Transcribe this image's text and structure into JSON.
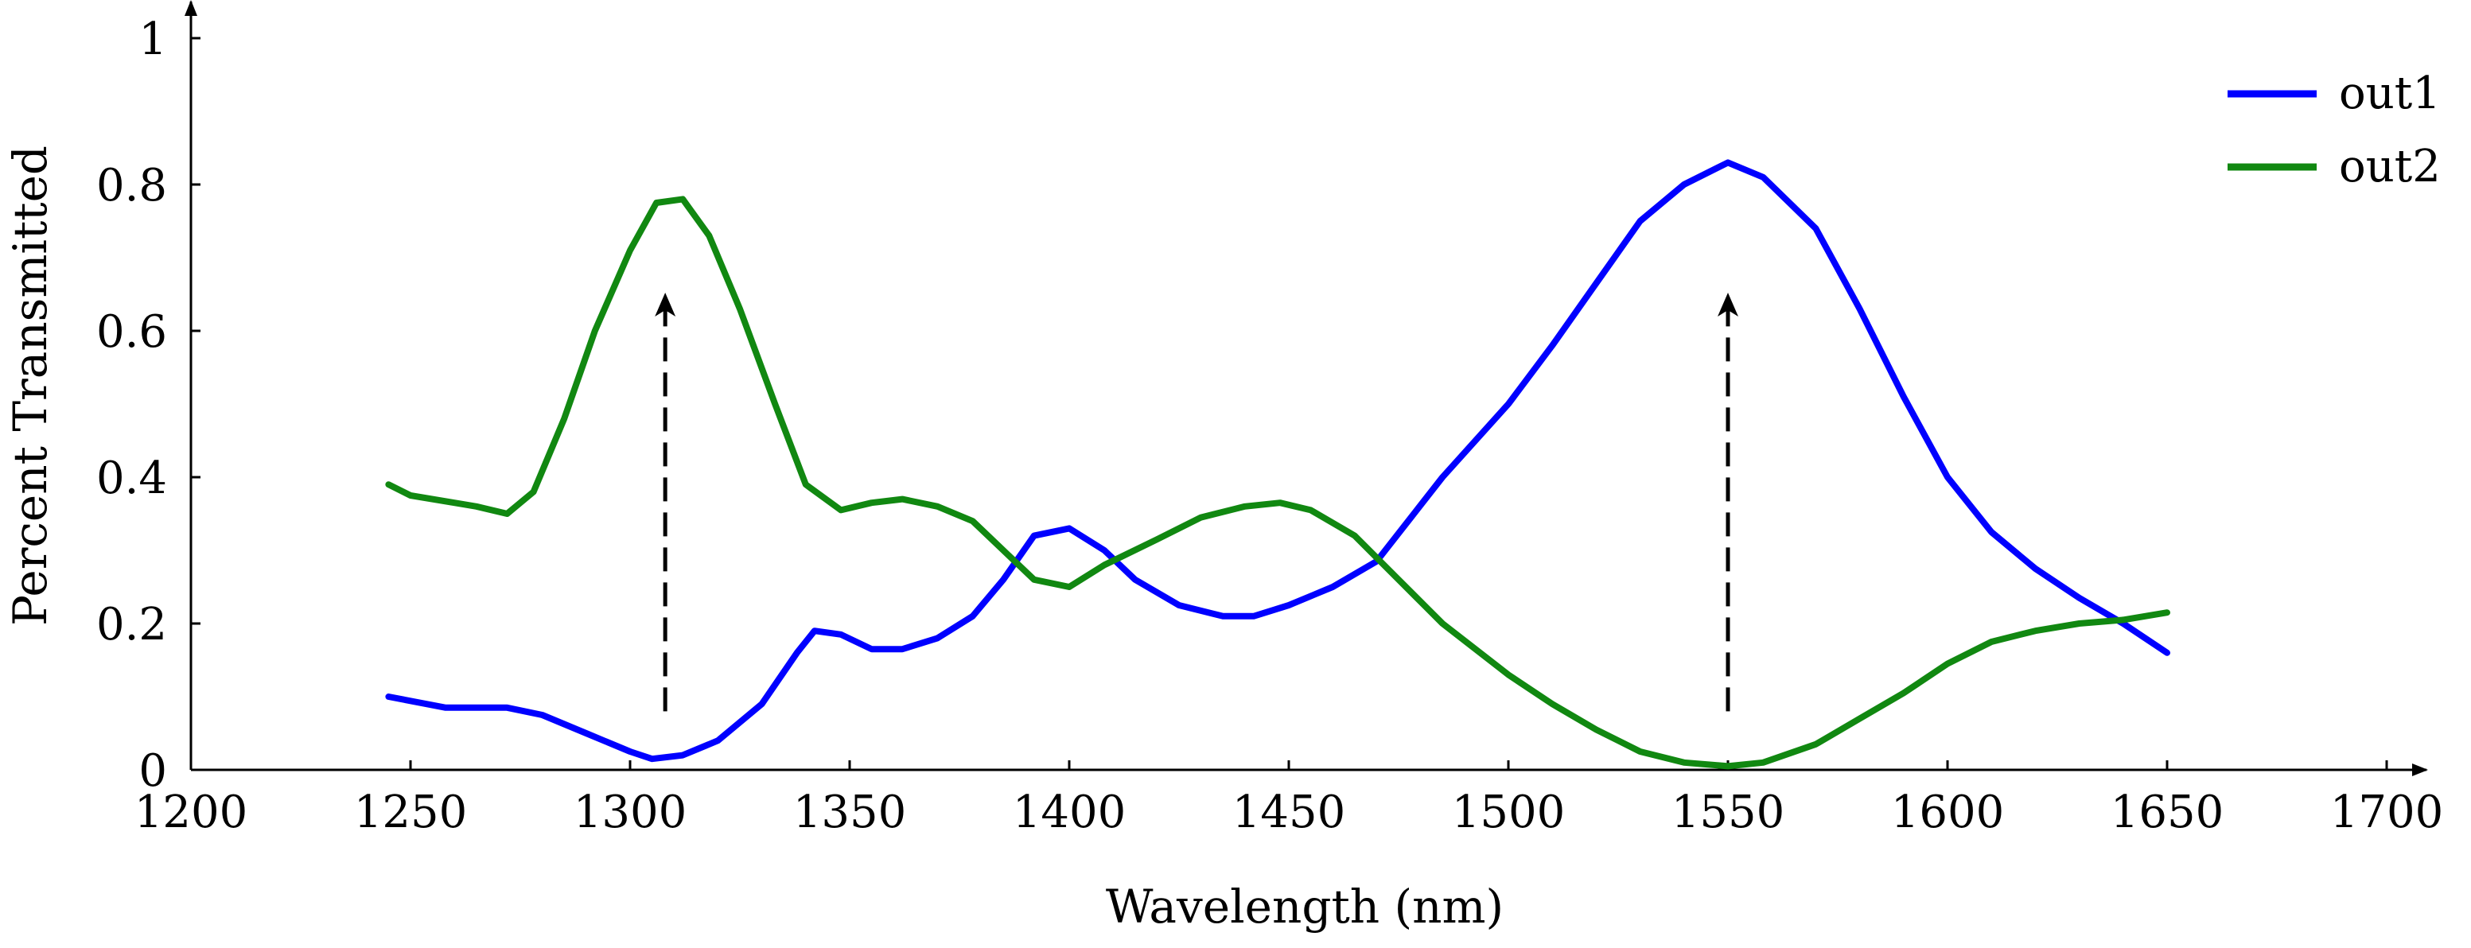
{
  "chart_data": {
    "type": "line",
    "title": "",
    "xlabel": "Wavelength (nm)",
    "ylabel": "Percent Transmitted",
    "xlim": [
      1200,
      1700
    ],
    "ylim": [
      0,
      1
    ],
    "xticks": [
      1200,
      1250,
      1300,
      1350,
      1400,
      1450,
      1500,
      1550,
      1600,
      1650,
      1700
    ],
    "yticks": [
      0,
      0.2,
      0.4,
      0.6,
      0.8,
      1
    ],
    "ytick_labels": [
      "0",
      "0.2",
      "0.4",
      "0.6",
      "0.8",
      "1"
    ],
    "grid": false,
    "legend_position": "top-right",
    "series": [
      {
        "name": "out1",
        "color": "#0000ff",
        "x": [
          1245,
          1258,
          1272,
          1280,
          1290,
          1300,
          1305,
          1312,
          1320,
          1330,
          1338,
          1342,
          1348,
          1355,
          1362,
          1370,
          1378,
          1385,
          1392,
          1400,
          1408,
          1415,
          1425,
          1435,
          1442,
          1450,
          1460,
          1470,
          1485,
          1500,
          1510,
          1520,
          1530,
          1540,
          1550,
          1558,
          1570,
          1580,
          1590,
          1600,
          1610,
          1620,
          1630,
          1640,
          1650
        ],
        "y": [
          0.1,
          0.085,
          0.085,
          0.075,
          0.05,
          0.025,
          0.015,
          0.02,
          0.04,
          0.09,
          0.16,
          0.19,
          0.185,
          0.165,
          0.165,
          0.18,
          0.21,
          0.26,
          0.32,
          0.33,
          0.3,
          0.26,
          0.225,
          0.21,
          0.21,
          0.225,
          0.25,
          0.285,
          0.4,
          0.5,
          0.58,
          0.665,
          0.75,
          0.8,
          0.83,
          0.81,
          0.74,
          0.63,
          0.51,
          0.4,
          0.325,
          0.275,
          0.235,
          0.2,
          0.16
        ]
      },
      {
        "name": "out2",
        "color": "#118811",
        "x": [
          1245,
          1250,
          1260,
          1265,
          1272,
          1278,
          1285,
          1292,
          1300,
          1306,
          1312,
          1318,
          1325,
          1333,
          1340,
          1348,
          1355,
          1362,
          1370,
          1378,
          1385,
          1392,
          1400,
          1408,
          1420,
          1430,
          1440,
          1448,
          1455,
          1465,
          1475,
          1485,
          1500,
          1510,
          1520,
          1530,
          1540,
          1550,
          1558,
          1570,
          1580,
          1590,
          1600,
          1610,
          1620,
          1630,
          1640,
          1650
        ],
        "y": [
          0.39,
          0.375,
          0.365,
          0.36,
          0.35,
          0.38,
          0.48,
          0.6,
          0.71,
          0.775,
          0.78,
          0.73,
          0.63,
          0.5,
          0.39,
          0.355,
          0.365,
          0.37,
          0.36,
          0.34,
          0.3,
          0.26,
          0.25,
          0.28,
          0.315,
          0.345,
          0.36,
          0.365,
          0.355,
          0.32,
          0.26,
          0.2,
          0.13,
          0.09,
          0.055,
          0.025,
          0.01,
          0.005,
          0.01,
          0.035,
          0.07,
          0.105,
          0.145,
          0.175,
          0.19,
          0.2,
          0.205,
          0.215
        ]
      }
    ],
    "annotations": [
      {
        "type": "dashed-arrow",
        "x": 1308,
        "y_start": 0.08,
        "y_end": 0.65
      },
      {
        "type": "dashed-arrow",
        "x": 1550,
        "y_start": 0.08,
        "y_end": 0.65
      }
    ]
  }
}
